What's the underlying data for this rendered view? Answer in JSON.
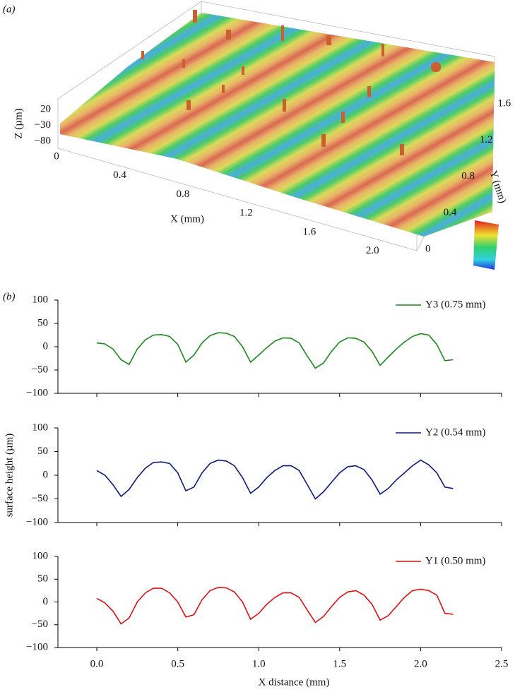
{
  "chart_data": [
    {
      "type": "surface",
      "panel_label": "(a)",
      "xlabel": "X (mm)",
      "ylabel": "Y (mm)",
      "zlabel": "Z (µm)",
      "xlim": [
        0,
        2.2
      ],
      "ylim": [
        0,
        1.75
      ],
      "zlim": [
        -80,
        20
      ],
      "xticks": [
        0,
        0.4,
        0.8,
        1.2,
        1.6,
        {
          "value": 2,
          "label": "2.0"
        }
      ],
      "yticks": [
        0,
        0.4,
        0.8,
        1.2,
        1.6
      ],
      "zticks": [
        20,
        {
          "value": -30,
          "label": "−30"
        },
        {
          "value": -80,
          "label": "−80"
        }
      ]
    },
    {
      "type": "line",
      "panel_label": "(b)",
      "xlim": [
        -0.24,
        2.5
      ],
      "ylim": [
        -100,
        100
      ],
      "yticks": [
        {
          "value": -100,
          "label": "−100"
        },
        {
          "value": -50,
          "label": "−50"
        },
        0,
        50,
        100
      ],
      "x": [
        0,
        0.05,
        0.1,
        0.15,
        0.2,
        0.25,
        0.3,
        0.35,
        0.4,
        0.45,
        0.5,
        0.55,
        0.6,
        0.65,
        0.7,
        0.75,
        0.8,
        0.85,
        0.9,
        0.95,
        1.0,
        1.05,
        1.1,
        1.15,
        1.2,
        1.25,
        1.3,
        1.35,
        1.4,
        1.45,
        1.5,
        1.55,
        1.6,
        1.65,
        1.7,
        1.75,
        1.8,
        1.85,
        1.9,
        1.95,
        2.0,
        2.05,
        2.1,
        2.15,
        2.2
      ],
      "series": [
        {
          "name": "Y3 (0.75 mm)",
          "color": "#1a8a1a",
          "values": [
            8,
            6,
            -5,
            -28,
            -38,
            -5,
            15,
            25,
            26,
            22,
            5,
            -33,
            -18,
            8,
            24,
            30,
            29,
            22,
            0,
            -33,
            -18,
            -2,
            12,
            19,
            18,
            8,
            -20,
            -46,
            -35,
            -10,
            10,
            19,
            18,
            10,
            -10,
            -40,
            -22,
            -5,
            10,
            22,
            28,
            25,
            5,
            -30,
            -28
          ]
        }
      ]
    },
    {
      "type": "line",
      "ylabel": "surface height (µm)",
      "xlim": [
        -0.24,
        2.5
      ],
      "ylim": [
        -100,
        100
      ],
      "yticks": [
        {
          "value": -100,
          "label": "−100"
        },
        {
          "value": -50,
          "label": "−50"
        },
        0,
        50,
        100
      ],
      "x": [
        0,
        0.05,
        0.1,
        0.15,
        0.2,
        0.25,
        0.3,
        0.35,
        0.4,
        0.45,
        0.5,
        0.55,
        0.6,
        0.65,
        0.7,
        0.75,
        0.8,
        0.85,
        0.9,
        0.95,
        1.0,
        1.05,
        1.1,
        1.15,
        1.2,
        1.25,
        1.3,
        1.35,
        1.4,
        1.45,
        1.5,
        1.55,
        1.6,
        1.65,
        1.7,
        1.75,
        1.8,
        1.85,
        1.9,
        1.95,
        2.0,
        2.05,
        2.1,
        2.15,
        2.2
      ],
      "series": [
        {
          "name": "Y2 (0.54 mm)",
          "color": "#0a1a80",
          "values": [
            10,
            0,
            -20,
            -45,
            -30,
            -5,
            15,
            27,
            28,
            25,
            5,
            -33,
            -25,
            5,
            25,
            32,
            30,
            20,
            -5,
            -38,
            -25,
            -5,
            10,
            20,
            20,
            10,
            -20,
            -50,
            -35,
            -15,
            5,
            18,
            20,
            12,
            -10,
            -40,
            -28,
            -10,
            5,
            20,
            32,
            22,
            5,
            -25,
            -28
          ]
        }
      ]
    },
    {
      "type": "line",
      "xlabel": "X distance (mm)",
      "xlim": [
        -0.24,
        2.5
      ],
      "ylim": [
        -100,
        100
      ],
      "yticks": [
        {
          "value": -100,
          "label": "−100"
        },
        {
          "value": -50,
          "label": "−50"
        },
        0,
        50,
        100
      ],
      "xticks": [
        {
          "value": 0,
          "label": "0.0"
        },
        0.5,
        {
          "value": 1,
          "label": "1.0"
        },
        1.5,
        {
          "value": 2,
          "label": "2.0"
        },
        2.5
      ],
      "x": [
        0,
        0.05,
        0.1,
        0.15,
        0.2,
        0.25,
        0.3,
        0.35,
        0.4,
        0.45,
        0.5,
        0.55,
        0.6,
        0.65,
        0.7,
        0.75,
        0.8,
        0.85,
        0.9,
        0.95,
        1.0,
        1.05,
        1.1,
        1.15,
        1.2,
        1.25,
        1.3,
        1.35,
        1.4,
        1.45,
        1.5,
        1.55,
        1.6,
        1.65,
        1.7,
        1.75,
        1.8,
        1.85,
        1.9,
        1.95,
        2.0,
        2.05,
        2.1,
        2.15,
        2.2
      ],
      "series": [
        {
          "name": "Y1 (0.50 mm)",
          "color": "#e01010",
          "values": [
            8,
            -2,
            -20,
            -48,
            -35,
            0,
            20,
            30,
            30,
            20,
            0,
            -33,
            -28,
            5,
            25,
            32,
            31,
            22,
            0,
            -38,
            -25,
            -5,
            10,
            20,
            20,
            10,
            -18,
            -45,
            -32,
            -10,
            10,
            22,
            25,
            15,
            -5,
            -40,
            -30,
            -10,
            10,
            25,
            28,
            25,
            15,
            -25,
            -27
          ]
        }
      ]
    }
  ]
}
